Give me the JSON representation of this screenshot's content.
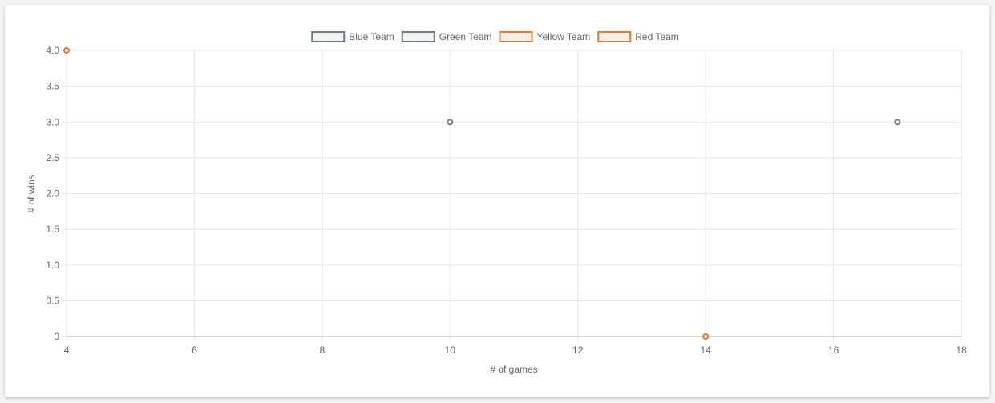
{
  "chart_data": {
    "type": "scatter",
    "title": "",
    "xlabel": "# of games",
    "ylabel": "# of wins",
    "xlim": [
      4,
      18
    ],
    "ylim": [
      0,
      4
    ],
    "x_ticks": [
      4,
      6,
      8,
      10,
      12,
      14,
      16,
      18
    ],
    "y_ticks": [
      "0",
      "0.5",
      "1.0",
      "1.5",
      "2.0",
      "2.5",
      "3.0",
      "3.5",
      "4.0"
    ],
    "grid": true,
    "legend_position": "top",
    "series": [
      {
        "name": "Blue Team",
        "border_color": "#6e7f80",
        "fill_color": "#f1f4f4",
        "points": [
          {
            "x": 10,
            "y": 3
          }
        ]
      },
      {
        "name": "Green Team",
        "border_color": "#6e7f80",
        "fill_color": "#f1f4f4",
        "points": [
          {
            "x": 17,
            "y": 3
          }
        ]
      },
      {
        "name": "Yellow Team",
        "border_color": "#e07b39",
        "fill_color": "#f4efe9",
        "points": [
          {
            "x": 4,
            "y": 4
          }
        ]
      },
      {
        "name": "Red Team",
        "border_color": "#e07b39",
        "fill_color": "#f4efe9",
        "points": [
          {
            "x": 14,
            "y": 0
          }
        ]
      }
    ]
  }
}
